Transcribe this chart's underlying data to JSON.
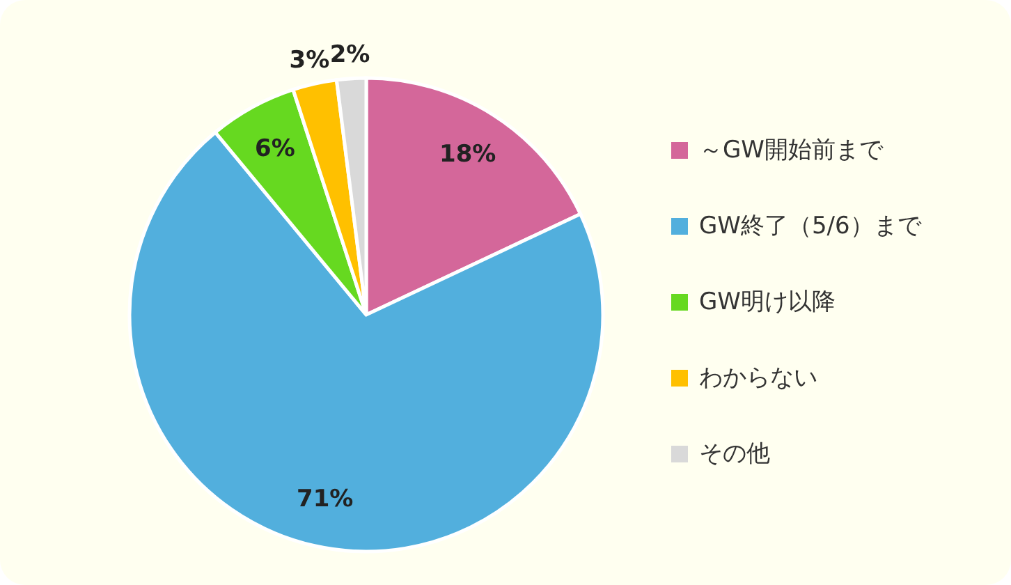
{
  "chart_data": {
    "type": "pie",
    "categories": [
      "～GW開始前まで",
      "GW終了（5/6）まで",
      "GW明け以降",
      "わからない",
      "その他"
    ],
    "values": [
      18,
      71,
      6,
      3,
      2
    ],
    "colors": [
      "#d4679a",
      "#52afdd",
      "#66d920",
      "#ffc000",
      "#d9d9d9"
    ],
    "value_labels": [
      "18%",
      "71%",
      "6%",
      "3%",
      "2%"
    ],
    "legend": "right"
  }
}
